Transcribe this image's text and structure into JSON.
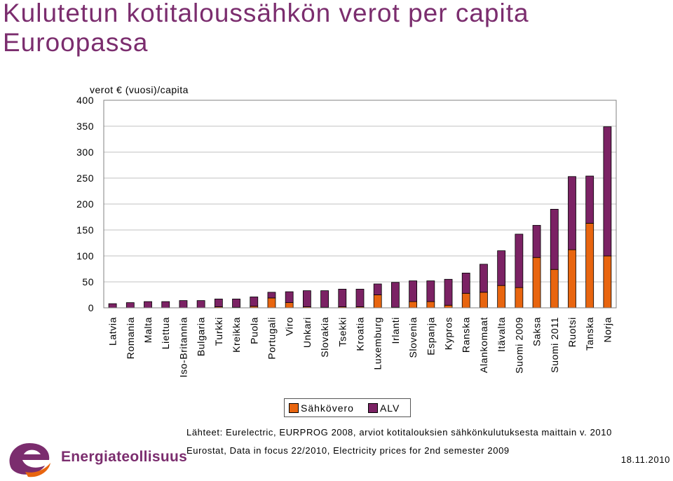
{
  "title": "Kulutetun kotitaloussähkön verot per capita Euroopassa",
  "colors": {
    "sahkovero": "#e8650f",
    "alv": "#7b2264",
    "title": "#7b2d6e",
    "grid": "#c0c0c0",
    "plot_border": "#808080"
  },
  "chart_data": {
    "type": "bar",
    "stacked": true,
    "ylabel": "verot € (vuosi)/capita",
    "ylim": [
      0,
      400
    ],
    "yticks": [
      0,
      50,
      100,
      150,
      200,
      250,
      300,
      350,
      400
    ],
    "grid": "horizontal",
    "legend_placement": "bottom",
    "categories": [
      "Latvia",
      "Romania",
      "Malta",
      "Liettua",
      "Iso-Britannia",
      "Bulgaria",
      "Turkki",
      "Kreikka",
      "Puola",
      "Portugali",
      "Viro",
      "Unkari",
      "Slovakia",
      "Tsekki",
      "Kroatia",
      "Luxemburg",
      "Irlanti",
      "Slovenia",
      "Espanja",
      "Kypros",
      "Ranska",
      "Alankomaat",
      "Itävalta",
      "Suomi 2009",
      "Saksa",
      "Suomi 2011",
      "Ruotsi",
      "Tanska",
      "Norja"
    ],
    "series": [
      {
        "name": "Sähkövero",
        "values": [
          0,
          0,
          0,
          0,
          0,
          0,
          2,
          1,
          3,
          19,
          10,
          2,
          1,
          2,
          2,
          25,
          1,
          12,
          12,
          5,
          28,
          30,
          43,
          39,
          97,
          74,
          112,
          163,
          100
        ]
      },
      {
        "name": "ALV",
        "values": [
          8,
          10,
          12,
          12,
          14,
          14,
          15,
          16,
          18,
          11,
          21,
          31,
          32,
          34,
          34,
          21,
          48,
          40,
          40,
          50,
          39,
          54,
          67,
          103,
          62,
          116,
          141,
          91,
          249
        ]
      }
    ]
  },
  "legend": {
    "sahkovero": "Sähkövero",
    "alv": "ALV"
  },
  "sources": {
    "line1": "Lähteet: Eurelectric, EURPROG 2008, arviot kotitalouksien sähkönkulutuksesta maittain v. 2010",
    "line2": "Eurostat, Data in focus 22/2010, Electricity prices for 2nd semester 2009"
  },
  "date": "18.11.2010",
  "logo": {
    "text": "Energiateollisuus",
    "icon": "energiateollisuus-logo-icon"
  }
}
